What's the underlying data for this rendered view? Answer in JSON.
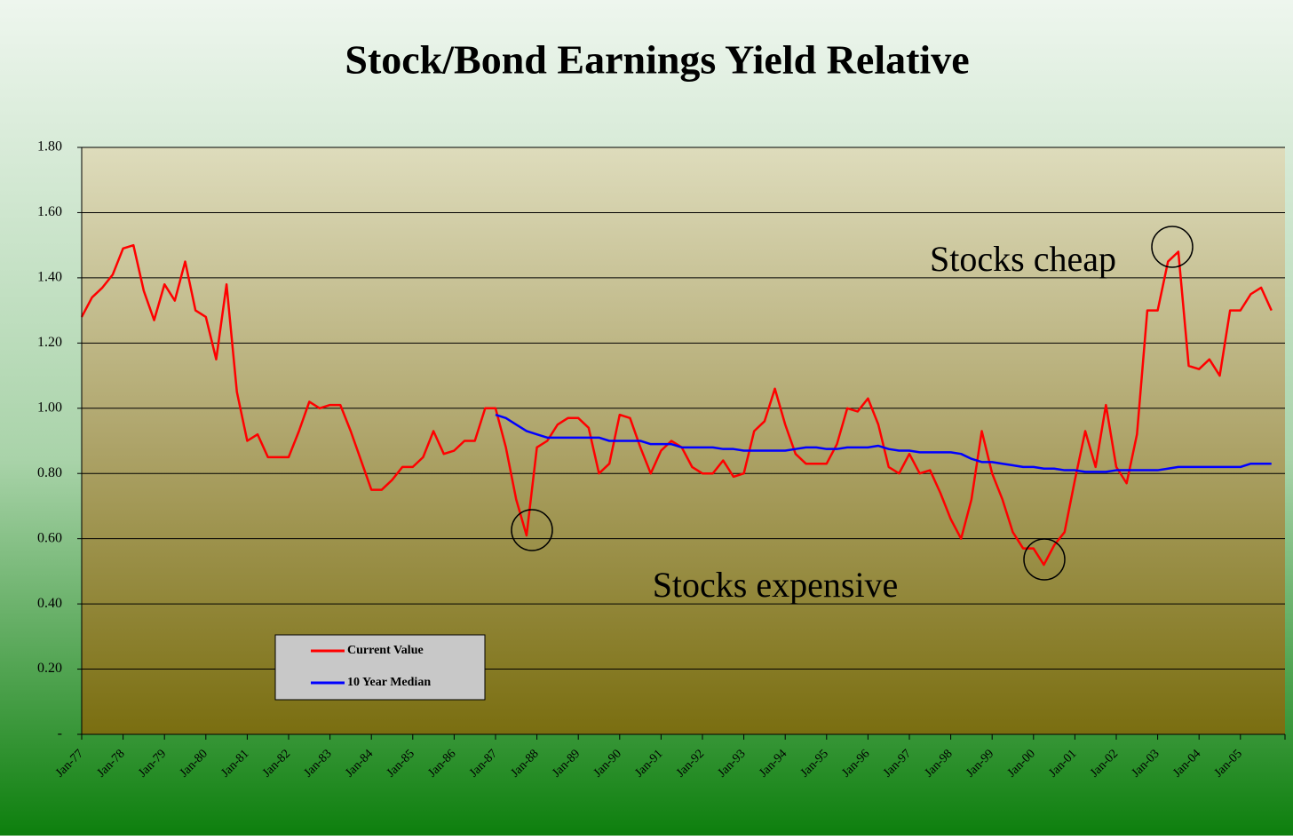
{
  "chart_data": {
    "type": "line",
    "title": "Stock/Bond Earnings Yield Relative",
    "annotations": [
      "Stocks cheap",
      "Stocks expensive"
    ],
    "categories": [
      "Jan-77",
      null,
      null,
      null,
      "Jan-78",
      null,
      null,
      null,
      "Jan-79",
      null,
      null,
      null,
      "Jan-80",
      null,
      null,
      null,
      "Jan-81",
      null,
      null,
      null,
      "Jan-82",
      null,
      null,
      null,
      "Jan-83",
      null,
      null,
      null,
      "Jan-84",
      null,
      null,
      null,
      "Jan-85",
      null,
      null,
      null,
      "Jan-86",
      null,
      null,
      null,
      "Jan-87",
      null,
      null,
      null,
      "Jan-88",
      null,
      null,
      null,
      "Jan-89",
      null,
      null,
      null,
      "Jan-90",
      null,
      null,
      null,
      "Jan-91",
      null,
      null,
      null,
      "Jan-92",
      null,
      null,
      null,
      "Jan-93",
      null,
      null,
      null,
      "Jan-94",
      null,
      null,
      null,
      "Jan-95",
      null,
      null,
      null,
      "Jan-96",
      null,
      null,
      null,
      "Jan-97",
      null,
      null,
      null,
      "Jan-98",
      null,
      null,
      null,
      "Jan-99",
      null,
      null,
      null,
      "Jan-00",
      null,
      null,
      null,
      "Jan-01",
      null,
      null,
      null,
      "Jan-02",
      null,
      null,
      null,
      "Jan-03",
      null,
      null,
      null,
      "Jan-04",
      null,
      null,
      null,
      "Jan-05",
      null,
      null,
      null
    ],
    "series": [
      {
        "name": "Current Value",
        "color": "#ff0000",
        "values": [
          1.28,
          1.34,
          1.37,
          1.41,
          1.49,
          1.5,
          1.36,
          1.27,
          1.38,
          1.33,
          1.45,
          1.3,
          1.28,
          1.15,
          1.38,
          1.05,
          0.9,
          0.92,
          0.85,
          0.85,
          0.85,
          0.93,
          1.02,
          1.0,
          1.01,
          1.01,
          0.93,
          0.84,
          0.75,
          0.75,
          0.78,
          0.82,
          0.82,
          0.85,
          0.93,
          0.86,
          0.87,
          0.9,
          0.9,
          1.0,
          1.0,
          0.88,
          0.72,
          0.61,
          0.88,
          0.9,
          0.95,
          0.97,
          0.97,
          0.94,
          0.8,
          0.83,
          0.98,
          0.97,
          0.88,
          0.8,
          0.87,
          0.9,
          0.88,
          0.82,
          0.8,
          0.8,
          0.84,
          0.79,
          0.8,
          0.93,
          0.96,
          1.06,
          0.95,
          0.86,
          0.83,
          0.83,
          0.83,
          0.89,
          1.0,
          0.99,
          1.03,
          0.95,
          0.82,
          0.8,
          0.86,
          0.8,
          0.81,
          0.74,
          0.66,
          0.6,
          0.72,
          0.93,
          0.8,
          0.72,
          0.62,
          0.57,
          0.57,
          0.52,
          0.58,
          0.62,
          0.78,
          0.93,
          0.82,
          1.01,
          0.82,
          0.77,
          0.92,
          1.3,
          1.3,
          1.45,
          1.48,
          1.13,
          1.12,
          1.15,
          1.1,
          1.3,
          1.3,
          1.35,
          1.37,
          1.3
        ]
      },
      {
        "name": "10 Year Median",
        "color": "#0000ff",
        "values": [
          null,
          null,
          null,
          null,
          null,
          null,
          null,
          null,
          null,
          null,
          null,
          null,
          null,
          null,
          null,
          null,
          null,
          null,
          null,
          null,
          null,
          null,
          null,
          null,
          null,
          null,
          null,
          null,
          null,
          null,
          null,
          null,
          null,
          null,
          null,
          null,
          null,
          null,
          null,
          null,
          0.98,
          0.97,
          0.95,
          0.93,
          0.92,
          0.91,
          0.91,
          0.91,
          0.91,
          0.91,
          0.91,
          0.9,
          0.9,
          0.9,
          0.9,
          0.89,
          0.89,
          0.89,
          0.88,
          0.88,
          0.88,
          0.88,
          0.875,
          0.875,
          0.87,
          0.87,
          0.87,
          0.87,
          0.87,
          0.875,
          0.88,
          0.88,
          0.875,
          0.875,
          0.88,
          0.88,
          0.88,
          0.885,
          0.875,
          0.87,
          0.87,
          0.865,
          0.865,
          0.865,
          0.865,
          0.86,
          0.845,
          0.835,
          0.835,
          0.83,
          0.825,
          0.82,
          0.82,
          0.815,
          0.815,
          0.81,
          0.81,
          0.805,
          0.805,
          0.805,
          0.81,
          0.81,
          0.81,
          0.81,
          0.81,
          0.815,
          0.82,
          0.82,
          0.82,
          0.82,
          0.82,
          0.82,
          0.82,
          0.83,
          0.83,
          0.83
        ]
      }
    ],
    "ylim": [
      0,
      1.8
    ],
    "yticks": [
      {
        "value": 0,
        "label": "-"
      },
      {
        "value": 0.2,
        "label": "0.20"
      },
      {
        "value": 0.4,
        "label": "0.40"
      },
      {
        "value": 0.6,
        "label": "0.60"
      },
      {
        "value": 0.8,
        "label": "0.80"
      },
      {
        "value": 1.0,
        "label": "1.00"
      },
      {
        "value": 1.2,
        "label": "1.20"
      },
      {
        "value": 1.4,
        "label": "1.40"
      },
      {
        "value": 1.6,
        "label": "1.60"
      },
      {
        "value": 1.8,
        "label": "1.80"
      }
    ],
    "grid": true
  }
}
